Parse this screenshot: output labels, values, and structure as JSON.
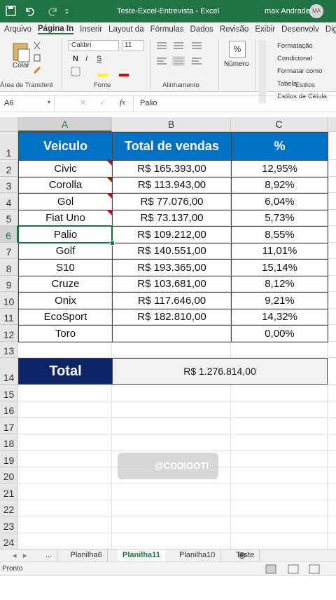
{
  "title_bar": {
    "title": "Teste-Excel-Entrevista - Excel",
    "user": "max Andrade",
    "avatar": "MA"
  },
  "ribbon": {
    "tabs": [
      "Arquivo",
      "Página In",
      "Inserir",
      "Layout da",
      "Fórmulas",
      "Dados",
      "Revisão",
      "Exibir",
      "Desenvolv",
      "Digi"
    ],
    "active_tab": 1,
    "clipboard": {
      "paste": "Colar",
      "label": "Área de Transferê"
    },
    "font": {
      "name": "Calibri",
      "size": "11",
      "bold": "N",
      "italic": "I",
      "underline": "S",
      "label": "Fonte"
    },
    "alignment": {
      "label": "Alinhamento"
    },
    "number": {
      "icon": "%",
      "label": "Número"
    },
    "styles": {
      "items": [
        "Formatação Condicional",
        "Formatar como Tabela",
        "Estilos de Célula"
      ],
      "label": "Estilos"
    }
  },
  "formula_bar": {
    "name_box": "A6",
    "fx": "fx",
    "content": "Palio"
  },
  "sheet": {
    "columns": [
      "A",
      "B",
      "C"
    ],
    "row_numbers": [
      1,
      2,
      3,
      4,
      5,
      6,
      7,
      8,
      9,
      10,
      11,
      12,
      13,
      14,
      15,
      16,
      17,
      18,
      19,
      20,
      21,
      22,
      23,
      24
    ],
    "rows": [
      [
        "Veiculo",
        "Total de vendas",
        "%"
      ],
      [
        "Civic",
        "R$ 165.393,00",
        "12,95%"
      ],
      [
        "Corolla",
        "R$ 113.943,00",
        "8,92%"
      ],
      [
        "Gol",
        "R$ 77.076,00",
        "6,04%"
      ],
      [
        "Fiat Uno",
        "R$ 73.137,00",
        "5,73%"
      ],
      [
        "Palio",
        "R$ 109.212,00",
        "8,55%"
      ],
      [
        "Golf",
        "R$ 140.551,00",
        "11,01%"
      ],
      [
        "S10",
        "R$ 193.365,00",
        "15,14%"
      ],
      [
        "Cruze",
        "R$ 103.681,00",
        "8,12%"
      ],
      [
        "Onix",
        "R$ 117.646,00",
        "9,21%"
      ],
      [
        "EcoSport",
        "R$ 182.810,00",
        "14,32%"
      ],
      [
        "Toro",
        null,
        "0,00%"
      ]
    ],
    "comment_rows": [
      2,
      3,
      4,
      5
    ],
    "total": {
      "label": "Total",
      "value": "R$ 1.276.814,00"
    }
  },
  "sheet_tabs": {
    "tabs": [
      "...",
      "Planilha6",
      "Planilha11",
      "Planilha10",
      "Teste"
    ],
    "active": 2
  },
  "status_bar": {
    "status": "Pronto"
  },
  "watermark": "@CODIGOTI"
}
